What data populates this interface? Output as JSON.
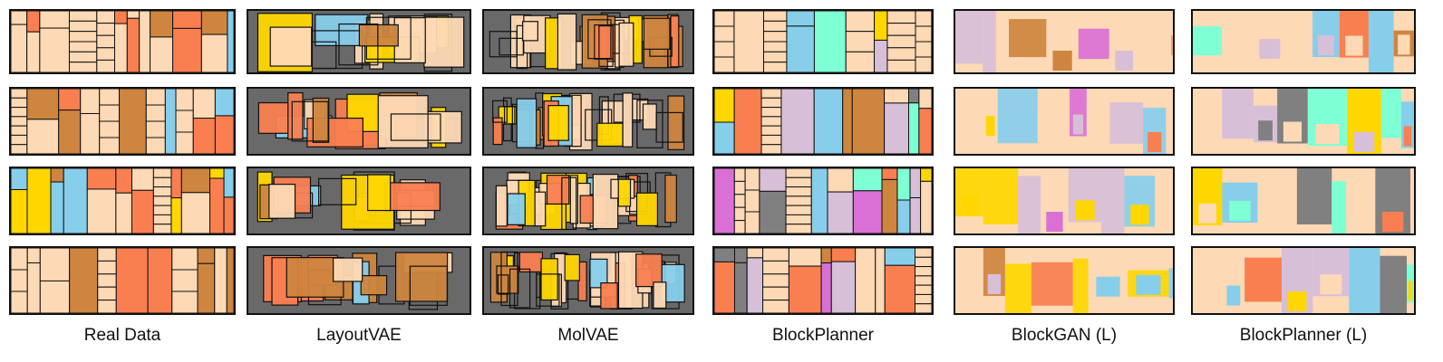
{
  "columns": [
    {
      "label": "Real Data"
    },
    {
      "label": "LayoutVAE"
    },
    {
      "label": "MolVAE"
    },
    {
      "label": "BlockPlanner"
    },
    {
      "label": "BlockGAN (L)"
    },
    {
      "label": "BlockPlanner (L)"
    }
  ],
  "colors": {
    "peach": "#FDD9B5",
    "orange": "#F97F51",
    "brown": "#CD853F",
    "blue": "#87CEEB",
    "yellow": "#FFD700",
    "gray": "#696969",
    "lightgray": "#D9D9D9",
    "purple": "#DA70D6",
    "lavender": "#D8BFD8",
    "mint": "#7FFFD4",
    "darkgray": "#808080"
  }
}
